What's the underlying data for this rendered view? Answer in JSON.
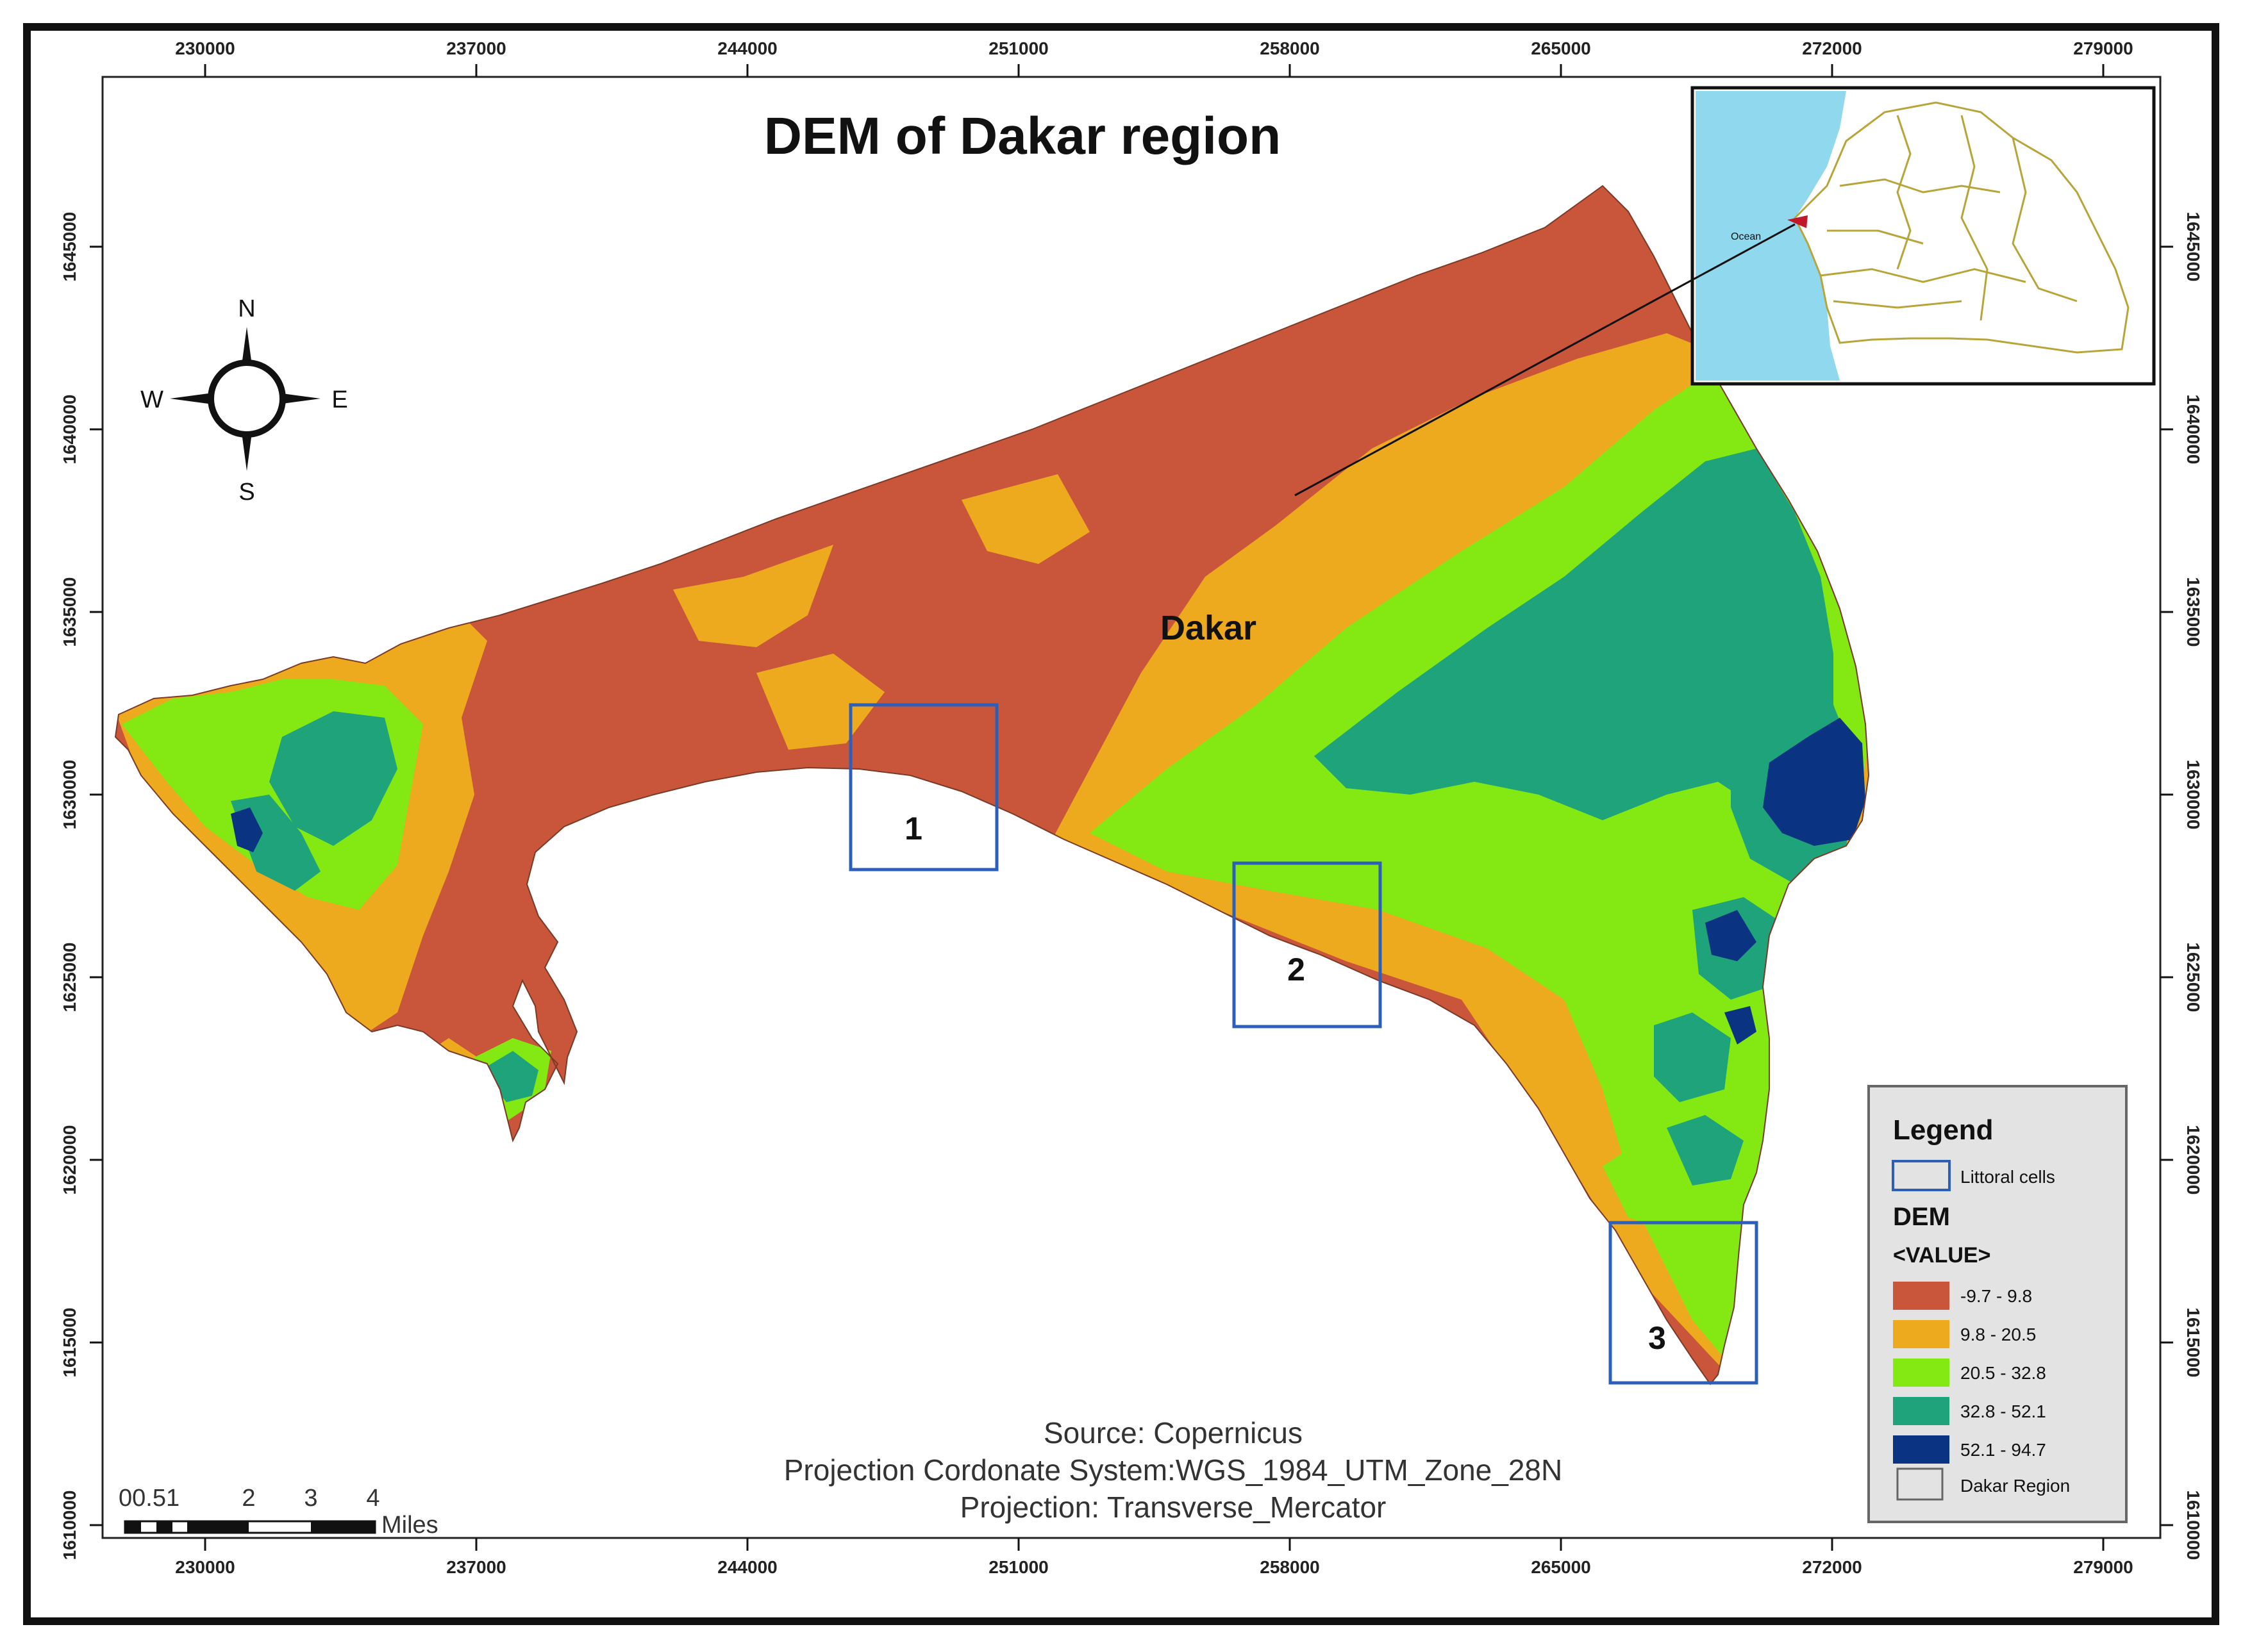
{
  "map": {
    "title": "DEM of Dakar region",
    "place_label": "Dakar",
    "source_lines": [
      "Source: Copernicus",
      "Projection Cordonate System:WGS_1984_UTM_Zone_28N",
      "Projection: Transverse_Mercator"
    ],
    "x_ticks": [
      "230000",
      "237000",
      "244000",
      "251000",
      "258000",
      "265000",
      "272000",
      "279000"
    ],
    "y_ticks": [
      "1645000",
      "1640000",
      "1635000",
      "1630000",
      "1625000",
      "1620000",
      "1615000",
      "1610000"
    ],
    "littoral_cells": [
      "1",
      "2",
      "3"
    ],
    "compass": {
      "n": "N",
      "s": "S",
      "e": "E",
      "w": "W"
    },
    "scale_bar": {
      "numbers": [
        "0",
        "0.5",
        "1",
        "2",
        "3",
        "4"
      ],
      "number_text": "00.51",
      "unit": "Miles"
    },
    "inset_label": "Ocean"
  },
  "legend": {
    "title": "Legend",
    "littoral_label": "Littoral cells",
    "dem_title": "DEM",
    "value_title": "<VALUE>",
    "classes": [
      {
        "label": "-9.7 - 9.8",
        "color": "#c9563a"
      },
      {
        "label": "9.8 - 20.5",
        "color": "#eeaa1f"
      },
      {
        "label": "20.5 - 32.8",
        "color": "#84e812"
      },
      {
        "label": "32.8 - 52.1",
        "color": "#1ea37b"
      },
      {
        "label": "52.1 - 94.7",
        "color": "#0a3482"
      }
    ],
    "region_label": "Dakar Region"
  },
  "colors": {
    "ocean": "#8fd8ee",
    "cell_outline": "#2e5fb8",
    "frame": "#111111",
    "region_outline": "#b7a53a"
  }
}
